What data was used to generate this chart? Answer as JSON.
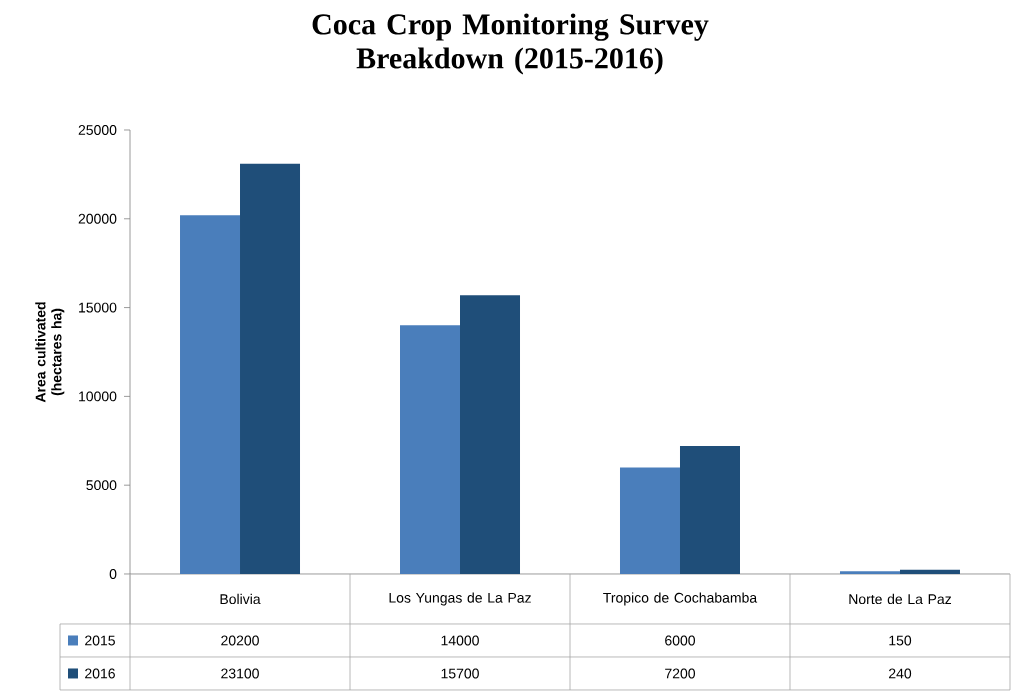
{
  "chart_data": {
    "type": "bar",
    "title": "Coca Crop Monitoring Survey Breakdown (2015-2016)",
    "ylabel": "Area cultivated (hectares ha)",
    "categories": [
      "Bolivia",
      "Los Yungas de La Paz",
      "Tropico de Cochabamba",
      "Norte de La Paz"
    ],
    "series": [
      {
        "name": "2015",
        "color": "#4a7ebb",
        "values": [
          20200,
          14000,
          6000,
          150
        ]
      },
      {
        "name": "2016",
        "color": "#1f4e79",
        "values": [
          23100,
          15700,
          7200,
          240
        ]
      }
    ],
    "ylim": [
      0,
      25000
    ],
    "yticks": [
      0,
      5000,
      10000,
      15000,
      20000,
      25000
    ],
    "data_labels": true,
    "legend": "bottom",
    "grid": false
  }
}
